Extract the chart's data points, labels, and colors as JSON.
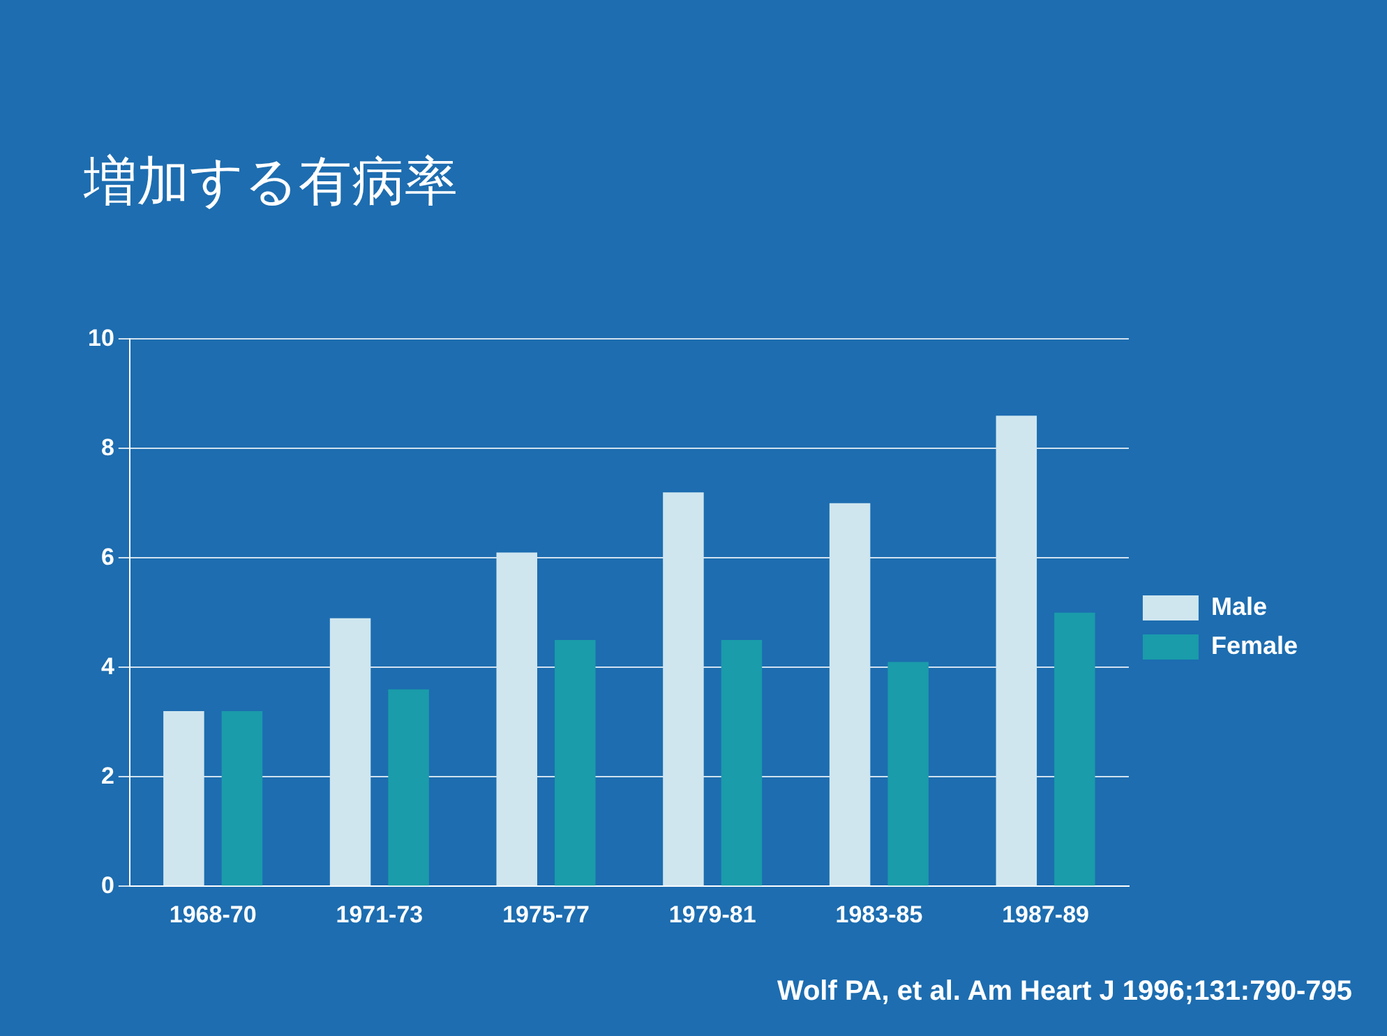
{
  "chart_data": {
    "type": "bar",
    "title": "増加する有病率",
    "categories": [
      "1968-70",
      "1971-73",
      "1975-77",
      "1979-81",
      "1983-85",
      "1987-89"
    ],
    "series": [
      {
        "name": "Male",
        "color": "#cfe6ef",
        "values": [
          3.2,
          4.9,
          6.1,
          7.2,
          7.0,
          8.6
        ]
      },
      {
        "name": "Female",
        "color": "#1a9caa",
        "values": [
          3.2,
          3.6,
          4.5,
          4.5,
          4.1,
          5.0
        ]
      }
    ],
    "ylim": [
      0,
      10
    ],
    "yticks": [
      0,
      2,
      4,
      6,
      8,
      10
    ],
    "grid": "y",
    "legend": "right",
    "annotations": [
      "Wolf PA, et al. Am Heart J 1996;131:790-795"
    ]
  }
}
